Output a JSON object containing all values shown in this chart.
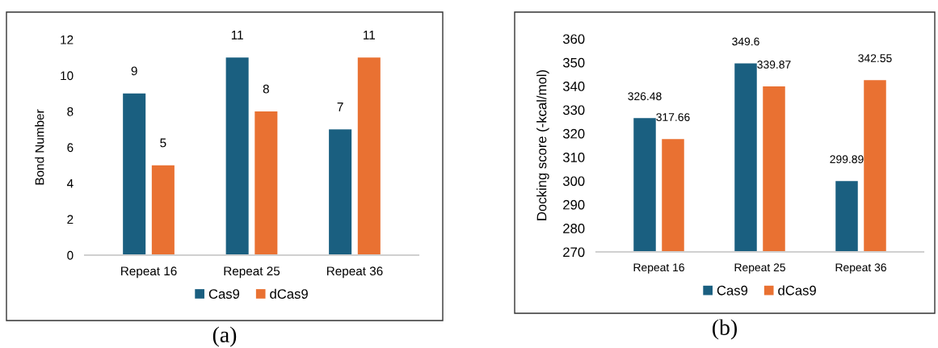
{
  "chart_data": [
    {
      "type": "bar",
      "ylabel": "Bond Number",
      "categories": [
        "Repeat 16",
        "Repeat 25",
        "Repeat 36"
      ],
      "series": [
        {
          "name": "Cas9",
          "color": "#1a5f80",
          "values": [
            9,
            11,
            7
          ]
        },
        {
          "name": "dCas9",
          "color": "#e97132",
          "values": [
            5,
            8,
            11
          ]
        }
      ],
      "ylim": [
        0,
        12
      ],
      "yticks": [
        0,
        2,
        4,
        6,
        8,
        10,
        12
      ],
      "data_labels": true,
      "legend": "bottom",
      "grid": false,
      "annotations": [
        "(a)"
      ]
    },
    {
      "type": "bar",
      "ylabel": "Docking score (-kcal/mol)",
      "categories": [
        "Repeat 16",
        "Repeat 25",
        "Repeat 36"
      ],
      "series": [
        {
          "name": "Cas9",
          "color": "#1a5f80",
          "values": [
            326.48,
            349.6,
            299.89
          ]
        },
        {
          "name": "dCas9",
          "color": "#e97132",
          "values": [
            317.66,
            339.87,
            342.55
          ]
        }
      ],
      "ylim": [
        270,
        360
      ],
      "yticks": [
        270,
        280,
        290,
        300,
        310,
        320,
        330,
        340,
        350,
        360
      ],
      "data_labels": true,
      "legend": "bottom",
      "grid": false,
      "annotations": [
        "(b)"
      ]
    }
  ]
}
